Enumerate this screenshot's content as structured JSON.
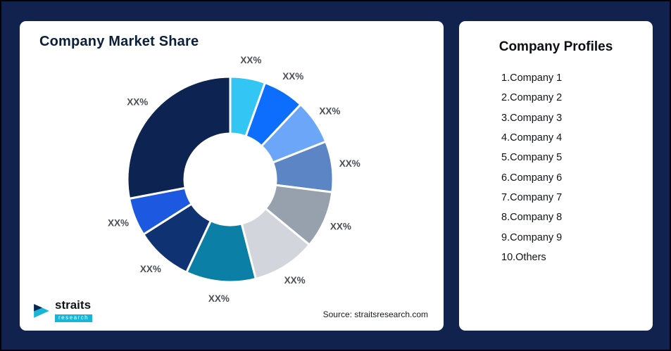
{
  "style": {
    "background": "#10224d",
    "card_background": "#ffffff"
  },
  "left_panel": {
    "title": "Company Market Share",
    "source": "Source: straitsresearch.com",
    "logo": {
      "brand": "straits",
      "sub": "research"
    }
  },
  "right_panel": {
    "title": "Company Profiles",
    "items": [
      "1.Company 1",
      "2.Company 2",
      "3.Company 3",
      "4.Company 4",
      "5.Company 5",
      "6.Company 6",
      "7.Company 7",
      "8.Company 8",
      "9.Company 9",
      "10.Others"
    ]
  },
  "chart_data": {
    "type": "pie",
    "donut": true,
    "title": "Company Market Share",
    "categories": [
      "Company 1",
      "Company 2",
      "Company 3",
      "Company 4",
      "Company 5",
      "Company 6",
      "Company 7",
      "Company 8",
      "Company 9",
      "Others"
    ],
    "values": [
      5.5,
      6.5,
      7,
      8,
      9,
      10,
      11,
      9,
      6,
      28
    ],
    "unit": "percent (placeholder labels)",
    "data_labels": [
      "XX%",
      "XX%",
      "XX%",
      "XX%",
      "XX%",
      "XX%",
      "XX%",
      "XX%",
      "XX%",
      "XX%"
    ],
    "colors": [
      "#33c5f3",
      "#0d6efd",
      "#6ba6f8",
      "#5c85c6",
      "#97a1ae",
      "#d2d6dc",
      "#0b7fa6",
      "#0e3272",
      "#1d59e0",
      "#0d2452"
    ],
    "label_color": "#4a4f57",
    "legend": "none",
    "start_angle_deg": 0,
    "direction": "clockwise"
  }
}
